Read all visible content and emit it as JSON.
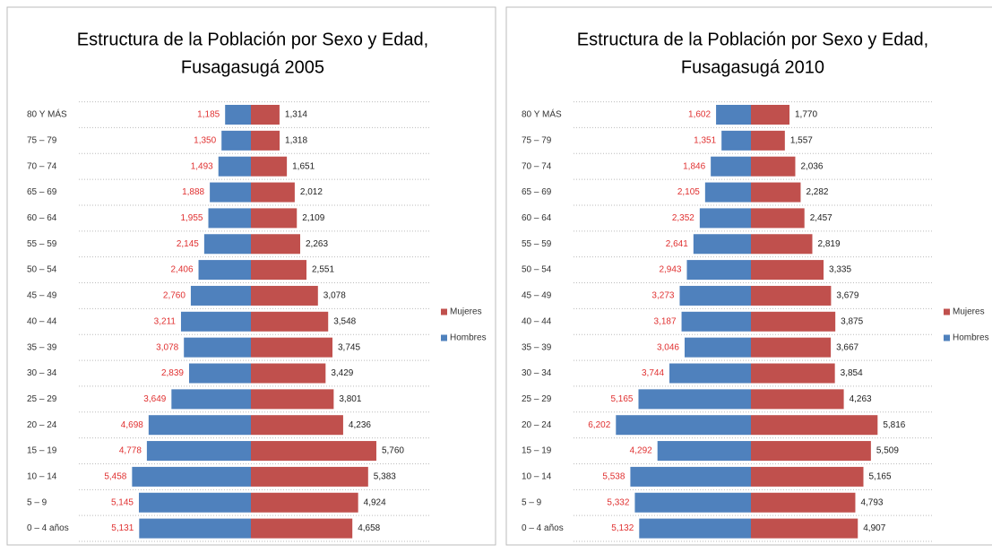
{
  "chart_data": [
    {
      "type": "pyramid",
      "title": "Estructura de la Población por Sexo y Edad,",
      "subtitle": "Fusagasugá 2005",
      "categories": [
        "80 Y MÁS",
        "75 – 79",
        "70 – 74",
        "65 – 69",
        "60 – 64",
        "55 – 59",
        "50 – 54",
        "45 – 49",
        "40 – 44",
        "35 – 39",
        "30 – 34",
        "25 – 29",
        "20 – 24",
        "15 – 19",
        "10 – 14",
        "5 – 9",
        "0 – 4 años"
      ],
      "series": [
        {
          "name": "Mujeres",
          "color": "#c0504d",
          "values": [
            1314,
            1318,
            1651,
            2012,
            2109,
            2263,
            2551,
            3078,
            3548,
            3745,
            3429,
            3801,
            4236,
            5760,
            5383,
            4924,
            4658
          ],
          "value_labels": [
            "1,314",
            "1,318",
            "1,651",
            "2,012",
            "2,109",
            "2,263",
            "2,551",
            "3,078",
            "3,548",
            "3,745",
            "3,429",
            "3,801",
            "4,236",
            "5,760",
            "5,383",
            "4,924",
            "4,658"
          ]
        },
        {
          "name": "Hombres",
          "color": "#4f81bd",
          "values": [
            1185,
            1350,
            1493,
            1888,
            1955,
            2145,
            2406,
            2760,
            3211,
            3078,
            2839,
            3649,
            4698,
            4778,
            5458,
            5145,
            5131
          ],
          "value_labels": [
            "1,185",
            "1,350",
            "1,493",
            "1,888",
            "1,955",
            "2,145",
            "2,406",
            "2,760",
            "3,211",
            "3,078",
            "2,839",
            "3,649",
            "4,698",
            "4,778",
            "5,458",
            "5,145",
            "5,131"
          ]
        }
      ]
    },
    {
      "type": "pyramid",
      "title": "Estructura de la Población por Sexo y Edad,",
      "subtitle": "Fusagasugá 2010",
      "categories": [
        "80 Y MÁS",
        "75 – 79",
        "70 – 74",
        "65 – 69",
        "60 – 64",
        "55 – 59",
        "50 – 54",
        "45 – 49",
        "40 – 44",
        "35 – 39",
        "30 – 34",
        "25 – 29",
        "20 – 24",
        "15 – 19",
        "10 – 14",
        "5 – 9",
        "0 – 4 años"
      ],
      "series": [
        {
          "name": "Mujeres",
          "color": "#c0504d",
          "values": [
            1770,
            1557,
            2036,
            2282,
            2457,
            2819,
            3335,
            3679,
            3875,
            3667,
            3854,
            4263,
            5816,
            5509,
            5165,
            4793,
            4907
          ],
          "value_labels": [
            "1,770",
            "1,557",
            "2,036",
            "2,282",
            "2,457",
            "2,819",
            "3,335",
            "3,679",
            "3,875",
            "3,667",
            "3,854",
            "4,263",
            "5,816",
            "5,509",
            "5,165",
            "4,793",
            "4,907"
          ]
        },
        {
          "name": "Hombres",
          "color": "#4f81bd",
          "values": [
            1602,
            1351,
            1846,
            2105,
            2352,
            2641,
            2943,
            3273,
            3187,
            3046,
            3744,
            5165,
            6202,
            4292,
            5538,
            5332,
            5132
          ],
          "value_labels": [
            "1,602",
            "1,351",
            "1,846",
            "2,105",
            "2,352",
            "2,641",
            "2,943",
            "3,273",
            "3,187",
            "3,046",
            "3,744",
            "5,165",
            "6,202",
            "4,292",
            "5,538",
            "5,332",
            "5,132"
          ]
        }
      ]
    }
  ]
}
